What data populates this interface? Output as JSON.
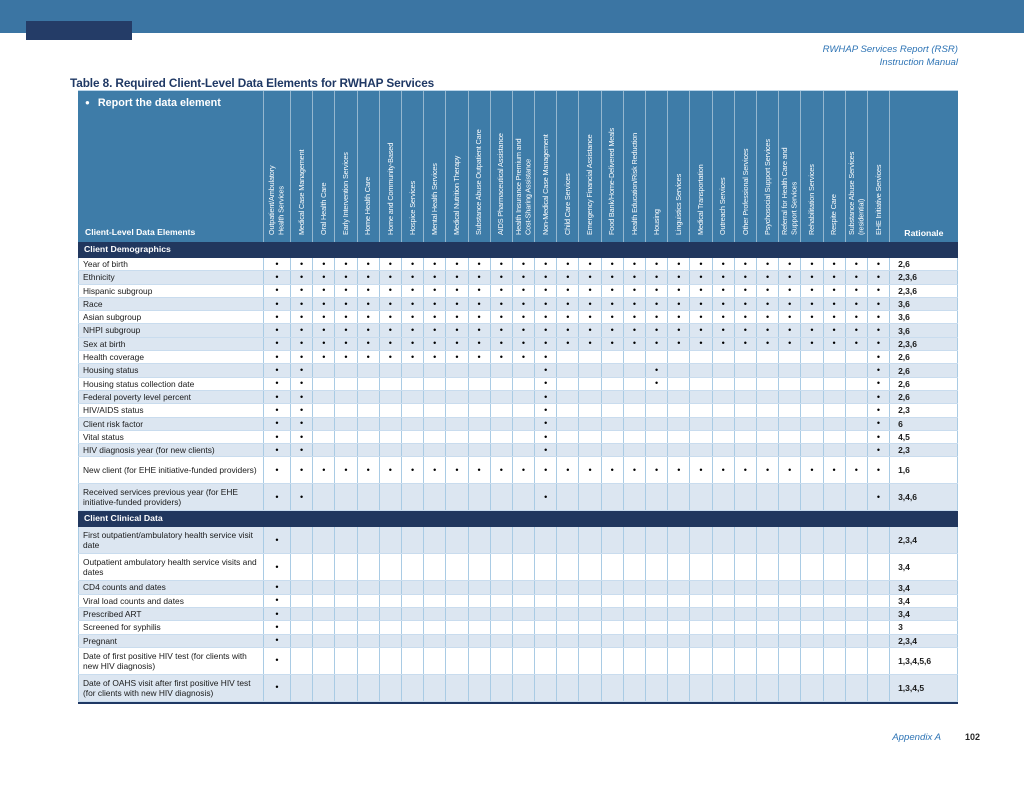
{
  "document": {
    "header_right_line1": "RWHAP Services Report (RSR)",
    "header_right_line2": "Instruction Manual",
    "title": "Table 8. Required Client-Level Data Elements for RWHAP Services",
    "footer_appendix": "Appendix A",
    "footer_page": "102"
  },
  "table": {
    "legend_bullet": "●",
    "legend_text": "Report the data element",
    "row_header": "Client-Level Data Elements",
    "rationale_header": "Rationale",
    "bullet_char": "•",
    "columns": [
      "Outpatient/Ambulatory\nHealth Services",
      "Medical Case Management",
      "Oral Health Care",
      "Early Intervention Services",
      "Home Health Care",
      "Home and Community-Based",
      "Hospice Services",
      "Mental Health Services",
      "Medical Nutrition Therapy",
      "Substance Abuse Outpatient Care",
      "AIDS Pharmaceutical Assistance",
      "Health Insurance Premium and\nCost-Sharing Assistance",
      "Non-Medical Case Management",
      "Child Care Services",
      "Emergency Financial Assistance",
      "Food Bank/Home-Delivered Meals",
      "Health Education/Risk Reduction",
      "Housing",
      "Linguistics Services",
      "Medical Transportation",
      "Outreach Services",
      "Other Professional Services",
      "Psychosocial Support Services",
      "Referral for Health Care and\nSupport Services",
      "Rehabilitation Services",
      "Respite Care",
      "Substance Abuse Services\n(residential)",
      "EHE Initiative Services"
    ],
    "sections": [
      {
        "label": "Client Demographics",
        "rows": [
          {
            "label": "Year of birth",
            "cols": "all",
            "rationale": "2,6",
            "alt": false,
            "tall": false
          },
          {
            "label": "Ethnicity",
            "cols": "all",
            "rationale": "2,3,6",
            "alt": true,
            "tall": false
          },
          {
            "label": "Hispanic subgroup",
            "cols": "all",
            "rationale": "2,3,6",
            "alt": false,
            "tall": false
          },
          {
            "label": "Race",
            "cols": "all",
            "rationale": "3,6",
            "alt": true,
            "tall": false
          },
          {
            "label": "Asian subgroup",
            "cols": "all",
            "rationale": "3,6",
            "alt": false,
            "tall": false
          },
          {
            "label": "NHPI subgroup",
            "cols": "all",
            "rationale": "3,6",
            "alt": true,
            "tall": false
          },
          {
            "label": "Sex at birth",
            "cols": "all",
            "rationale": "2,3,6",
            "alt": true,
            "tall": false
          },
          {
            "label": "Health coverage",
            "cols": [
              1,
              2,
              3,
              4,
              5,
              6,
              7,
              8,
              9,
              10,
              11,
              12,
              13,
              28
            ],
            "rationale": "2,6",
            "alt": false,
            "tall": false
          },
          {
            "label": "Housing status",
            "cols": [
              1,
              2,
              13,
              18,
              28
            ],
            "rationale": "2,6",
            "alt": true,
            "tall": false
          },
          {
            "label": "Housing status collection date",
            "cols": [
              1,
              2,
              13,
              18,
              28
            ],
            "rationale": "2,6",
            "alt": false,
            "tall": false
          },
          {
            "label": "Federal poverty level percent",
            "cols": [
              1,
              2,
              13,
              28
            ],
            "rationale": "2,6",
            "alt": true,
            "tall": false
          },
          {
            "label": "HIV/AIDS status",
            "cols": [
              1,
              2,
              13,
              28
            ],
            "rationale": "2,3",
            "alt": false,
            "tall": false
          },
          {
            "label": "Client risk factor",
            "cols": [
              1,
              2,
              13,
              28
            ],
            "rationale": "6",
            "alt": true,
            "tall": false
          },
          {
            "label": "Vital status",
            "cols": [
              1,
              2,
              13,
              28
            ],
            "rationale": "4,5",
            "alt": false,
            "tall": false
          },
          {
            "label": "HIV diagnosis year (for new clients)",
            "cols": [
              1,
              2,
              13,
              28
            ],
            "rationale": "2,3",
            "alt": true,
            "tall": false
          },
          {
            "label": "New client (for EHE initiative-funded providers)",
            "cols": "all",
            "rationale": "1,6",
            "alt": false,
            "tall": true
          },
          {
            "label": "Received services previous year (for EHE initiative-funded providers)",
            "cols": [
              1,
              2,
              13,
              28
            ],
            "rationale": "3,4,6",
            "alt": true,
            "tall": true
          }
        ]
      },
      {
        "label": "Client Clinical Data",
        "rows": [
          {
            "label": "First outpatient/ambulatory health service visit date",
            "cols": [
              1
            ],
            "rationale": "2,3,4",
            "alt": true,
            "tall": true
          },
          {
            "label": "Outpatient ambulatory health service visits and dates",
            "cols": [
              1
            ],
            "rationale": "3,4",
            "alt": false,
            "tall": true
          },
          {
            "label": "CD4 counts and dates",
            "cols": [
              1
            ],
            "rationale": "3,4",
            "alt": true,
            "tall": false
          },
          {
            "label": "Viral load counts and dates",
            "cols": [
              1
            ],
            "rationale": "3,4",
            "alt": false,
            "tall": false
          },
          {
            "label": "Prescribed ART",
            "cols": [
              1
            ],
            "rationale": "3,4",
            "alt": true,
            "tall": false
          },
          {
            "label": "Screened for syphilis",
            "cols": [
              1
            ],
            "rationale": "3",
            "alt": false,
            "tall": false
          },
          {
            "label": "Pregnant",
            "cols": [
              1
            ],
            "rationale": "2,3,4",
            "alt": true,
            "tall": false
          },
          {
            "label": "Date of first positive HIV test (for clients with new HIV diagnosis)",
            "cols": [
              1
            ],
            "rationale": "1,3,4,5,6",
            "alt": false,
            "tall": true
          },
          {
            "label": "Date of OAHS visit after first positive HIV test (for clients with new HIV diagnosis)",
            "cols": [
              1
            ],
            "rationale": "1,3,4,5",
            "alt": true,
            "tall": true
          }
        ]
      }
    ]
  },
  "colors": {
    "banner_blue": "#3B75A3",
    "tab_navy": "#243C67",
    "header_teal": "#3E7CA8",
    "section_band_navy": "#21375E",
    "title_navy": "#1F3864",
    "row_alt_blue": "#DCE6F1",
    "grid_line": "#A9CBE4",
    "accent_text_blue": "#2E74B5"
  }
}
